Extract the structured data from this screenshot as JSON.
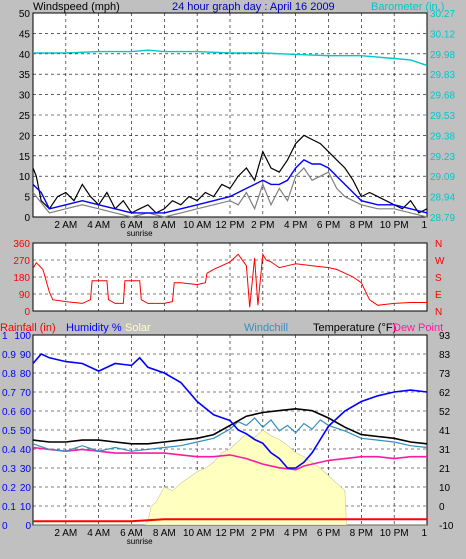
{
  "colors": {
    "background": "#c0c0c0",
    "plot_bg": "#ffffff",
    "grid": "#000000",
    "wind_speed": "#000000",
    "wind_avg": "#0000ff",
    "wind_gust": "#808080",
    "barometer": "#00c8c8",
    "direction": "#ff0000",
    "rainfall": "#ff0000",
    "humidity": "#0000ff",
    "solar": "#ffffc0",
    "solar_edge": "#c8c8a0",
    "windchill": "#3090c0",
    "temperature": "#000000",
    "dew_point": "#ff1aa0",
    "title": "#0000c0",
    "baro_title": "#00c8c8",
    "header_black": "#000000"
  },
  "chart_data": [
    {
      "type": "line",
      "id": "wind-baro",
      "title": "24 hour graph day : April 16 2009",
      "left_label": "Windspeed (mph)",
      "right_label": "Barometer (in.)",
      "x_ticks": [
        "2 AM",
        "4 AM",
        "6 AM",
        "8 AM",
        "10 AM",
        "12 PM",
        "2 PM",
        "4 PM",
        "6 PM",
        "8 PM",
        "10 PM",
        "1"
      ],
      "sunrise_label": "sunrise",
      "y_left_ticks": [
        "50",
        "45",
        "40",
        "35",
        "30",
        "25",
        "20",
        "15",
        "10",
        "5",
        "0"
      ],
      "y_left_range": [
        0,
        50
      ],
      "y_right_ticks": [
        "30.27",
        "30.12",
        "29.98",
        "29.83",
        "29.68",
        "29.53",
        "29.38",
        "29.23",
        "29.09",
        "28.94",
        "28.79"
      ],
      "y_right_range": [
        28.79,
        30.27
      ],
      "x_range": [
        0,
        24
      ],
      "series": [
        {
          "key": "baro",
          "axis": "right",
          "x": [
            0,
            2,
            4,
            5,
            6,
            7,
            8,
            10,
            12,
            14,
            16,
            18,
            20,
            22,
            23,
            24
          ],
          "values": [
            29.98,
            29.98,
            29.99,
            29.99,
            29.99,
            30.0,
            29.99,
            29.99,
            29.98,
            29.98,
            29.97,
            29.96,
            29.96,
            29.94,
            29.93,
            29.89
          ]
        },
        {
          "key": "wind_speed",
          "axis": "left",
          "x": [
            0,
            0.2,
            0.5,
            1,
            1.5,
            2,
            2.5,
            3,
            3.5,
            4,
            4.5,
            5,
            5.5,
            6,
            6.5,
            7,
            7.5,
            8,
            8.5,
            9,
            9.5,
            10,
            10.5,
            11,
            11.5,
            12,
            12.5,
            13,
            13.5,
            14,
            14.5,
            15,
            15.5,
            16,
            16.5,
            17,
            17.5,
            18,
            18.5,
            19,
            19.5,
            20,
            20.5,
            21,
            21.5,
            22,
            22.5,
            23,
            23.5,
            24
          ],
          "values": [
            12,
            10,
            4,
            2,
            5,
            6,
            4,
            8,
            5,
            3,
            6,
            2,
            4,
            1,
            2,
            3,
            1,
            2,
            4,
            3,
            5,
            4,
            6,
            5,
            8,
            7,
            10,
            12,
            9,
            16,
            12,
            11,
            14,
            18,
            20,
            19,
            18,
            16,
            14,
            12,
            9,
            5,
            6,
            5,
            4,
            3,
            2,
            4,
            1,
            2
          ]
        },
        {
          "key": "wind_avg",
          "axis": "left",
          "x": [
            0,
            0.5,
            1,
            2,
            3,
            4,
            5,
            6,
            7,
            8,
            9,
            10,
            11,
            12,
            12.5,
            13,
            13.5,
            14,
            14.5,
            15,
            15.5,
            16,
            16.5,
            17,
            17.5,
            18,
            18.5,
            19,
            19.5,
            20,
            21,
            22,
            23,
            24
          ],
          "values": [
            8,
            6,
            2,
            3,
            4,
            3,
            2,
            1,
            1,
            1,
            2,
            3,
            4,
            5,
            6,
            7,
            8,
            9,
            8,
            8,
            9,
            12,
            14,
            13,
            13,
            12,
            10,
            8,
            6,
            4,
            3,
            3,
            2,
            1
          ]
        },
        {
          "key": "wind_gust",
          "axis": "left",
          "x": [
            0,
            1,
            2,
            3,
            4,
            5,
            6,
            7,
            8,
            9,
            10,
            11,
            12,
            12.5,
            13,
            13.5,
            14,
            14.5,
            15,
            15.5,
            16,
            16.5,
            17,
            17.5,
            18,
            18.5,
            19,
            20,
            21,
            22,
            23,
            24
          ],
          "values": [
            6,
            1,
            2,
            3,
            2,
            1,
            0,
            1,
            0,
            1,
            2,
            3,
            4,
            3,
            6,
            2,
            8,
            3,
            7,
            4,
            10,
            12,
            9,
            10,
            11,
            7,
            5,
            3,
            2,
            2,
            1,
            0
          ]
        }
      ]
    },
    {
      "type": "line",
      "id": "direction",
      "left_label": "",
      "y_left_ticks": [
        "360",
        "270",
        "180",
        "90",
        "0"
      ],
      "y_left_range": [
        0,
        360
      ],
      "right_ticks": [
        "N",
        "W",
        "S",
        "E",
        "N"
      ],
      "x_range": [
        0,
        24
      ],
      "series": [
        {
          "key": "direction",
          "x": [
            0,
            0.2,
            0.6,
            1,
            1.2,
            2,
            3,
            3.5,
            3.6,
            4,
            4.5,
            4.6,
            5,
            5.5,
            5.6,
            6,
            6.5,
            6.6,
            7,
            8,
            8.5,
            8.6,
            9,
            10,
            10.5,
            10.6,
            11,
            12,
            12.5,
            13,
            13.2,
            13.5,
            13.7,
            14,
            14.2,
            14.5,
            15,
            15.5,
            16,
            17,
            18,
            18.5,
            19,
            19.5,
            20,
            20.5,
            21,
            22,
            23,
            24
          ],
          "values": [
            225,
            255,
            220,
            100,
            60,
            50,
            40,
            60,
            160,
            160,
            160,
            60,
            40,
            40,
            160,
            160,
            160,
            60,
            40,
            40,
            50,
            150,
            150,
            140,
            150,
            200,
            220,
            260,
            300,
            240,
            20,
            280,
            30,
            300,
            270,
            260,
            230,
            240,
            250,
            240,
            230,
            220,
            200,
            180,
            150,
            60,
            30,
            40,
            45,
            45
          ]
        }
      ]
    },
    {
      "type": "line",
      "id": "temp-hum",
      "labels": {
        "rainfall": "Rainfall (in)",
        "humidity": "Humidity %",
        "solar": "Solar",
        "windchill": "Windchill",
        "temperature": "Temperature (°F)",
        "dew_point": "Dew Point"
      },
      "x_ticks": [
        "2 AM",
        "4 AM",
        "6 AM",
        "8 AM",
        "10 AM",
        "12 PM",
        "2 PM",
        "4 PM",
        "6 PM",
        "8 PM",
        "10 PM",
        "1"
      ],
      "sunrise_label": "sunrise",
      "rain_ticks": [
        "1",
        "0.9",
        "0.8",
        "0.7",
        "0.6",
        "0.5",
        "0.4",
        "0.3",
        "0.2",
        "0.1",
        "0"
      ],
      "hum_ticks": [
        "100",
        "90",
        "80",
        "70",
        "60",
        "50",
        "40",
        "30",
        "20",
        "10",
        "0"
      ],
      "temp_ticks": [
        "93",
        "83",
        "73",
        "62",
        "52",
        "41",
        "31",
        "21",
        "10",
        "0",
        "-10"
      ],
      "y_range_percent": [
        0,
        100
      ],
      "temp_range": [
        -10,
        93
      ],
      "x_range": [
        0,
        24
      ],
      "series": [
        {
          "key": "humidity",
          "x": [
            0,
            0.5,
            1,
            2,
            3,
            4,
            5,
            6,
            6.5,
            7,
            8,
            9,
            10,
            11,
            12,
            12.5,
            13,
            13.5,
            14,
            14.5,
            15,
            15.5,
            16,
            16.5,
            17,
            17.5,
            18,
            19,
            20,
            21,
            22,
            23,
            24
          ],
          "values": [
            85,
            90,
            88,
            86,
            85,
            81,
            85,
            84,
            88,
            83,
            80,
            75,
            65,
            58,
            55,
            50,
            48,
            45,
            43,
            38,
            35,
            30,
            30,
            33,
            38,
            45,
            52,
            60,
            65,
            68,
            70,
            71,
            70
          ]
        },
        {
          "key": "temperature",
          "axis": "temp",
          "x": [
            0,
            1,
            2,
            3,
            4,
            5,
            6,
            7,
            8,
            9,
            10,
            11,
            12,
            13,
            14,
            15,
            16,
            17,
            18,
            19,
            20,
            21,
            22,
            23,
            24
          ],
          "values": [
            36,
            35,
            35,
            36,
            36,
            35,
            34,
            34,
            35,
            36,
            37,
            39,
            44,
            49,
            51,
            52,
            53,
            52,
            48,
            43,
            39,
            38,
            37,
            35,
            34
          ]
        },
        {
          "key": "windchill",
          "axis": "temp",
          "x": [
            0,
            1,
            2,
            3,
            4,
            5,
            6,
            7,
            8,
            9,
            10,
            11,
            12,
            12.5,
            13,
            13.5,
            14,
            14.5,
            15,
            15.5,
            16,
            16.5,
            17,
            17.5,
            18,
            19,
            20,
            21,
            22,
            23,
            24
          ],
          "values": [
            34,
            31,
            30,
            33,
            30,
            32,
            30,
            31,
            32,
            33,
            35,
            37,
            42,
            46,
            44,
            48,
            43,
            47,
            41,
            44,
            40,
            45,
            42,
            47,
            44,
            41,
            37,
            36,
            35,
            33,
            32
          ]
        },
        {
          "key": "dew_point",
          "axis": "temp",
          "x": [
            0,
            1,
            2,
            3,
            4,
            5,
            6,
            7,
            8,
            9,
            10,
            11,
            12,
            13,
            14,
            15,
            16,
            16.5,
            17,
            18,
            19,
            20,
            21,
            22,
            23,
            24
          ],
          "values": [
            32,
            31,
            30,
            31,
            30,
            29,
            29,
            29,
            29,
            28,
            27,
            27,
            28,
            26,
            23,
            21,
            20,
            22,
            23,
            25,
            26,
            27,
            27,
            26,
            27,
            27
          ]
        },
        {
          "key": "solar",
          "x": [
            0,
            6.8,
            7,
            7.2,
            7.5,
            8,
            8.5,
            9,
            9.5,
            10,
            10.5,
            11,
            11.5,
            12,
            12.5,
            13,
            13.5,
            14,
            14.5,
            15,
            15.5,
            16,
            16.5,
            17,
            17.5,
            18,
            18.5,
            19,
            19.1,
            24
          ],
          "values": [
            0,
            0,
            2,
            10,
            12,
            20,
            18,
            22,
            25,
            28,
            30,
            33,
            38,
            40,
            44,
            48,
            46,
            50,
            47,
            45,
            42,
            38,
            36,
            33,
            30,
            26,
            22,
            18,
            0,
            0
          ]
        },
        {
          "key": "rainfall",
          "x": [
            0,
            6,
            8,
            10,
            12,
            14,
            16,
            18,
            20,
            22,
            24
          ],
          "values": [
            0.02,
            0.02,
            0.03,
            0.03,
            0.03,
            0.03,
            0.03,
            0.03,
            0.03,
            0.03,
            0.03
          ]
        }
      ]
    }
  ]
}
